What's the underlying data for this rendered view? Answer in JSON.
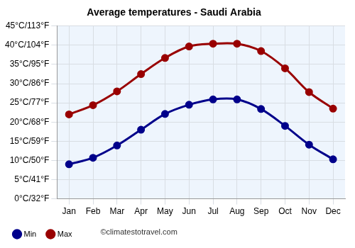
{
  "chart_data": {
    "type": "line",
    "title": "Average temperatures - Saudi Arabia",
    "annotation": "©climatestotravel.com",
    "categories": [
      "Jan",
      "Feb",
      "Mar",
      "Apr",
      "May",
      "Jun",
      "Jul",
      "Aug",
      "Sep",
      "Oct",
      "Nov",
      "Dec"
    ],
    "series": [
      {
        "name": "Min",
        "color": "#00008b",
        "marker": "circle",
        "values": [
          9,
          10.7,
          13.9,
          18,
          22.1,
          24.5,
          25.9,
          25.9,
          23.4,
          19,
          14.1,
          10.3
        ]
      },
      {
        "name": "Max",
        "color": "#990000",
        "marker": "circle",
        "values": [
          22,
          24.4,
          28,
          32.5,
          36.7,
          39.7,
          40.4,
          40.4,
          38.5,
          34,
          27.8,
          23.5
        ]
      }
    ],
    "ylim": [
      0,
      45
    ],
    "yticks": [
      {
        "value": 0,
        "label": "0°C/32°F"
      },
      {
        "value": 5,
        "label": "5°C/41°F"
      },
      {
        "value": 10,
        "label": "10°C/50°F"
      },
      {
        "value": 15,
        "label": "15°C/59°F"
      },
      {
        "value": 20,
        "label": "20°C/68°F"
      },
      {
        "value": 25,
        "label": "25°C/77°F"
      },
      {
        "value": 30,
        "label": "30°C/86°F"
      },
      {
        "value": 35,
        "label": "35°C/95°F"
      },
      {
        "value": 40,
        "label": "40°C/104°F"
      },
      {
        "value": 45,
        "label": "45°C/113°F"
      }
    ],
    "grid": true,
    "legend": "bottom"
  }
}
